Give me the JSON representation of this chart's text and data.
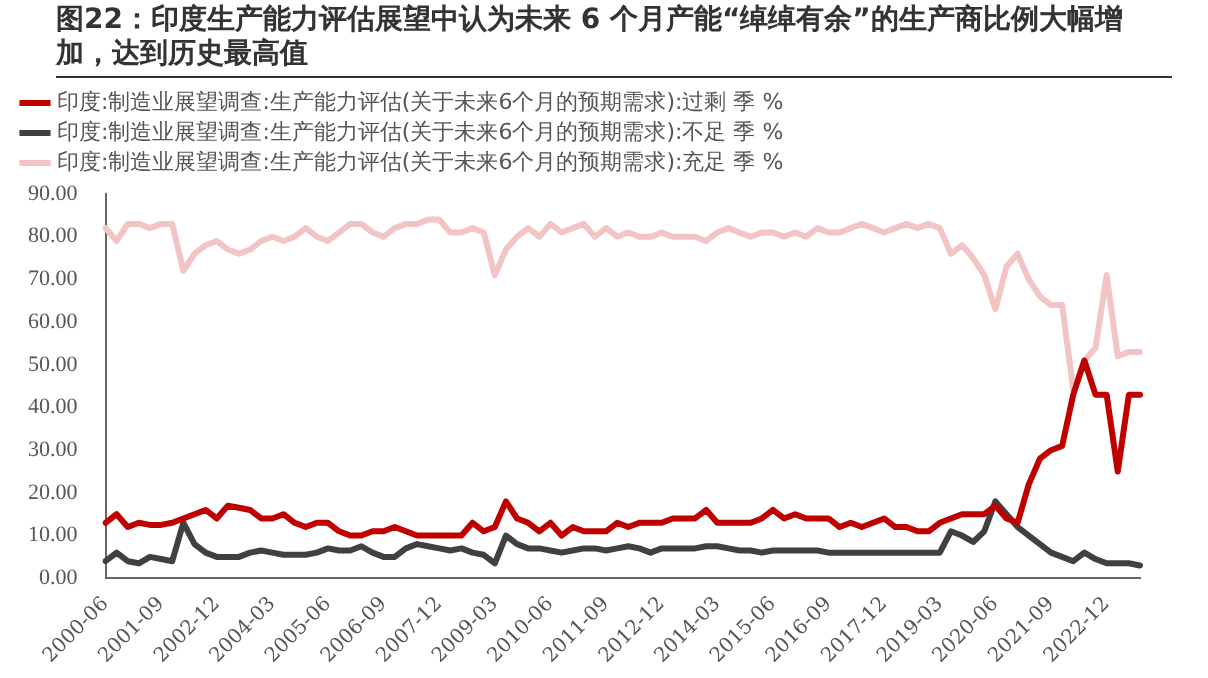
{
  "chart_data": {
    "type": "line",
    "title": "图22：印度生产能力评估展望中认为未来 6 个月产能“绰绰有余”的生产商比例大幅增加，达到历史最高值",
    "categories": [
      "2000-06",
      null,
      null,
      null,
      null,
      "2001-09",
      null,
      null,
      null,
      null,
      "2002-12",
      null,
      null,
      null,
      null,
      "2004-03",
      null,
      null,
      null,
      null,
      "2005-06",
      null,
      null,
      null,
      null,
      "2006-09",
      null,
      null,
      null,
      null,
      "2007-12",
      null,
      null,
      null,
      null,
      "2009-03",
      null,
      null,
      null,
      null,
      "2010-06",
      null,
      null,
      null,
      null,
      "2011-09",
      null,
      null,
      null,
      null,
      "2012-12",
      null,
      null,
      null,
      null,
      "2014-03",
      null,
      null,
      null,
      null,
      "2015-06",
      null,
      null,
      null,
      null,
      "2016-09",
      null,
      null,
      null,
      null,
      "2017-12",
      null,
      null,
      null,
      null,
      "2019-03",
      null,
      null,
      null,
      null,
      "2020-06",
      null,
      null,
      null,
      null,
      "2021-09",
      null,
      null,
      null,
      null,
      "2022-12",
      null,
      null,
      null
    ],
    "series": [
      {
        "name": "印度:制造业展望调查:生产能力评估(关于未来6个月的预期需求):过剩 季 %",
        "color": "#c00000",
        "values": [
          13,
          15,
          12,
          13,
          12.5,
          12.5,
          13,
          14,
          15,
          16,
          14,
          17,
          16.5,
          16,
          14,
          14,
          15,
          13,
          12,
          13,
          13,
          11,
          10,
          10,
          11,
          11,
          12,
          11,
          10,
          10,
          10,
          10,
          10,
          13,
          11,
          12,
          18,
          14,
          13,
          11,
          13,
          10,
          12,
          11,
          11,
          11,
          13,
          12,
          13,
          13,
          13,
          14,
          14,
          14,
          16,
          13,
          13,
          13,
          13,
          14,
          16,
          14,
          15,
          14,
          14,
          14,
          12,
          13,
          12,
          13,
          14,
          12,
          12,
          11,
          11,
          13,
          14,
          15,
          15,
          15,
          17,
          14,
          13,
          22,
          28,
          30,
          31,
          43,
          51,
          43,
          43,
          25,
          43,
          43
        ]
      },
      {
        "name": "印度:制造业展望调查:生产能力评估(关于未来6个月的预期需求):不足 季 %",
        "color": "#404040",
        "values": [
          4,
          6,
          4,
          3.5,
          5,
          4.5,
          4,
          13,
          8,
          6,
          5,
          5,
          5,
          6,
          6.5,
          6,
          5.5,
          5.5,
          5.5,
          6,
          7,
          6.5,
          6.5,
          7.5,
          6,
          5,
          5,
          7,
          8,
          7.5,
          7,
          6.5,
          7,
          6,
          5.5,
          3.5,
          10,
          8,
          7,
          7,
          6.5,
          6,
          6.5,
          7,
          7,
          6.5,
          7,
          7.5,
          7,
          6,
          7,
          7,
          7,
          7,
          7.5,
          7.5,
          7,
          6.5,
          6.5,
          6,
          6.5,
          6.5,
          6.5,
          6.5,
          6.5,
          6,
          6,
          6,
          6,
          6,
          6,
          6,
          6,
          6,
          6,
          6,
          11,
          10,
          8.5,
          11,
          18,
          15,
          12,
          10,
          8,
          6,
          5,
          4,
          6,
          4.5,
          3.5,
          3.5,
          3.5,
          3
        ]
      },
      {
        "name": "印度:制造业展望调查:生产能力评估(关于未来6个月的预期需求):充足 季 %",
        "color": "#f2c4c4",
        "values": [
          82,
          79,
          83,
          83,
          82,
          83,
          83,
          72,
          76,
          78,
          79,
          77,
          76,
          77,
          79,
          80,
          79,
          80,
          82,
          80,
          79,
          81,
          83,
          83,
          81,
          80,
          82,
          83,
          83,
          84,
          84,
          81,
          81,
          82,
          81,
          71,
          77,
          80,
          82,
          80,
          83,
          81,
          82,
          83,
          80,
          82,
          80,
          81,
          80,
          80,
          81,
          80,
          80,
          80,
          79,
          81,
          82,
          81,
          80,
          81,
          81,
          80,
          81,
          80,
          82,
          81,
          81,
          82,
          83,
          82,
          81,
          82,
          83,
          82,
          83,
          82,
          76,
          78,
          75,
          71,
          63,
          73,
          76,
          70,
          66,
          64,
          64,
          44,
          51,
          54,
          71,
          52,
          53,
          53
        ]
      }
    ],
    "ylim": [
      0,
      90
    ],
    "yticks": [
      {
        "value": 0,
        "label": "0.00"
      },
      {
        "value": 10,
        "label": "10.00"
      },
      {
        "value": 20,
        "label": "20.00"
      },
      {
        "value": 30,
        "label": "30.00"
      },
      {
        "value": 40,
        "label": "40.00"
      },
      {
        "value": 50,
        "label": "50.00"
      },
      {
        "value": 60,
        "label": "60.00"
      },
      {
        "value": 70,
        "label": "70.00"
      },
      {
        "value": 80,
        "label": "80.00"
      },
      {
        "value": 90,
        "label": "90.00"
      }
    ],
    "grid": false,
    "legend": "top left",
    "marker": "none",
    "line_style": "solid"
  }
}
